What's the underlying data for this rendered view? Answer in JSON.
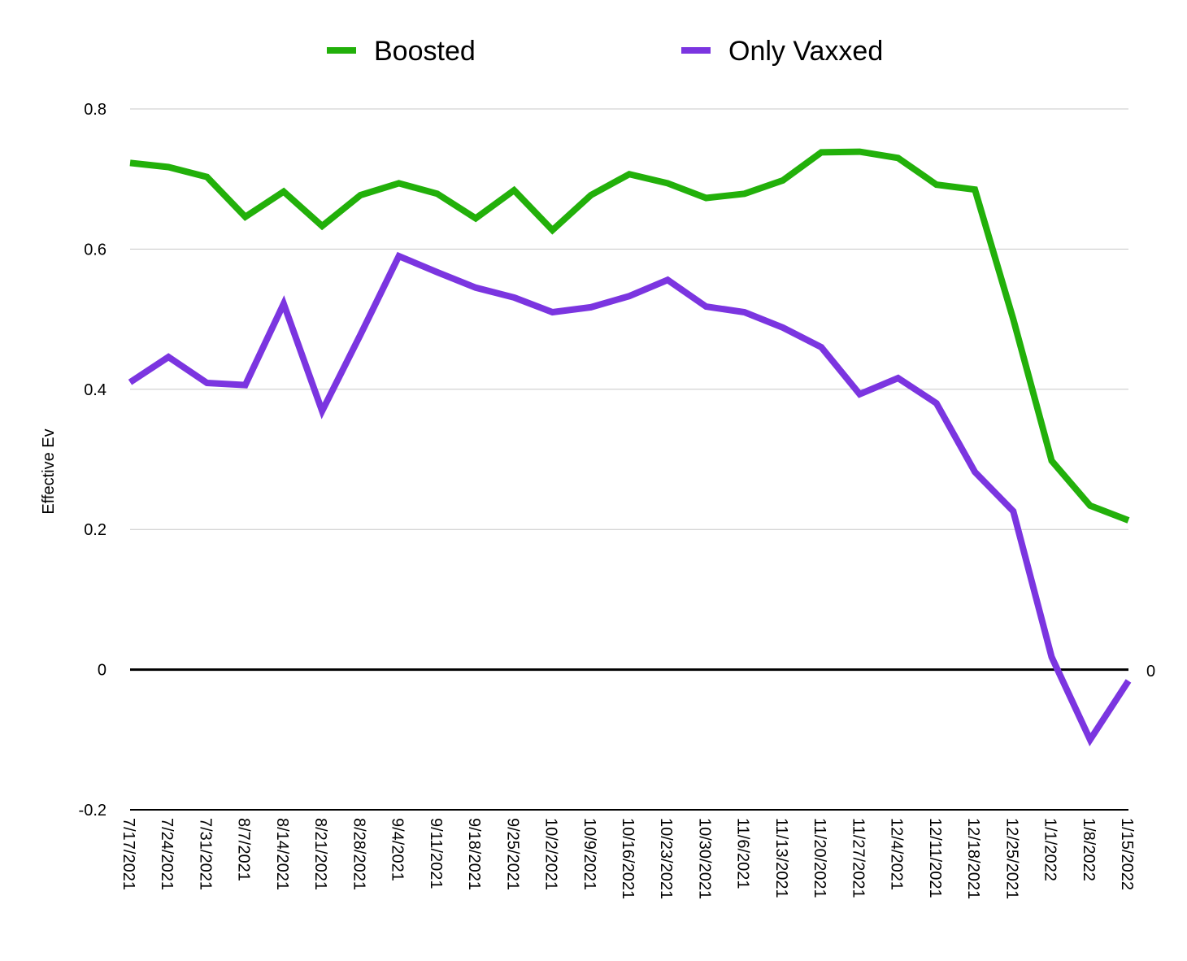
{
  "chart_data": {
    "type": "line",
    "title": "",
    "xlabel": "",
    "ylabel": "Effective Ev",
    "ylim": [
      -0.2,
      0.8
    ],
    "yticks": [
      "-0.2",
      "0",
      "0.2",
      "0.4",
      "0.6",
      "0.8"
    ],
    "grid": true,
    "legend_position": "top",
    "zero_line_label": "0",
    "x": [
      "7/17/2021",
      "7/24/2021",
      "7/31/2021",
      "8/7/2021",
      "8/14/2021",
      "8/21/2021",
      "8/28/2021",
      "9/4/2021",
      "9/11/2021",
      "9/18/2021",
      "9/25/2021",
      "10/2/2021",
      "10/9/2021",
      "10/16/2021",
      "10/23/2021",
      "10/30/2021",
      "11/6/2021",
      "11/13/2021",
      "11/20/2021",
      "11/27/2021",
      "12/4/2021",
      "12/11/2021",
      "12/18/2021",
      "12/25/2021",
      "1/1/2022",
      "1/8/2022",
      "1/15/2022"
    ],
    "series": [
      {
        "name": "Boosted",
        "color": "#22b00a",
        "values": [
          0.723,
          0.717,
          0.703,
          0.646,
          0.682,
          0.633,
          0.677,
          0.694,
          0.679,
          0.644,
          0.684,
          0.627,
          0.677,
          0.707,
          0.694,
          0.673,
          0.679,
          0.698,
          0.738,
          0.739,
          0.73,
          0.692,
          0.685,
          0.5,
          0.298,
          0.234,
          0.213
        ]
      },
      {
        "name": "Only Vaxxed",
        "color": "#7b35e0",
        "values": [
          0.41,
          0.446,
          0.409,
          0.406,
          0.522,
          0.369,
          0.478,
          0.59,
          0.567,
          0.545,
          0.531,
          0.51,
          0.517,
          0.533,
          0.556,
          0.518,
          0.51,
          0.488,
          0.46,
          0.393,
          0.416,
          0.38,
          0.282,
          0.226,
          0.018,
          -0.1,
          -0.016
        ]
      }
    ]
  }
}
